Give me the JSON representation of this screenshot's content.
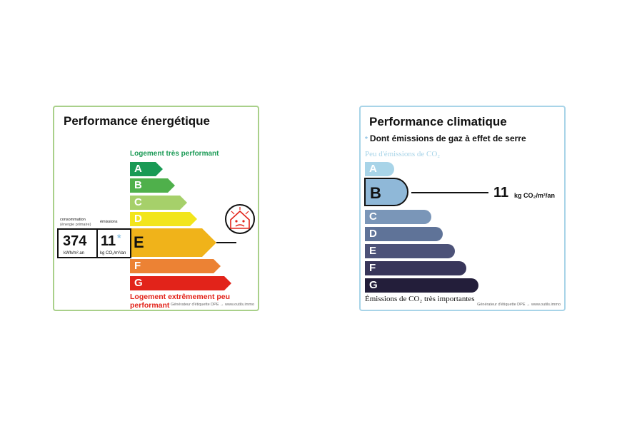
{
  "energy": {
    "title": "Performance énergétique",
    "top_label": "Logement très performant",
    "bottom_label": "Logement extrêmement peu performant",
    "credit": "Générateur d'étiquette DPE → www.outils.immo",
    "consumption_label": "consommation",
    "consumption_sublabel": "(énergie primaire)",
    "emissions_label": "émissions",
    "consumption_value": "374",
    "consumption_unit": "kWh/m².an",
    "emissions_value": "11",
    "emissions_star": "*",
    "emissions_unit": "kg CO₂/m²/an",
    "classes": [
      {
        "letter": "A",
        "color": "#1a9a55"
      },
      {
        "letter": "B",
        "color": "#4fb04b"
      },
      {
        "letter": "C",
        "color": "#a6d06a"
      },
      {
        "letter": "D",
        "color": "#f2e51c"
      },
      {
        "letter": "E",
        "color": "#f0b31a"
      },
      {
        "letter": "F",
        "color": "#ec8234"
      },
      {
        "letter": "G",
        "color": "#e2231a"
      }
    ],
    "selected": "E"
  },
  "climate": {
    "title": "Performance climatique",
    "subtitle_star": "*",
    "subtitle": "Dont émissions de gaz à effet de serre",
    "top_label": "Peu d'émissions de CO₂",
    "bottom_label": "Émissions de CO₂ très importantes",
    "credit": "Générateur d'étiquette DPE → www.outils.immo",
    "value": "11",
    "unit": "kg CO₂/m²/an",
    "classes": [
      {
        "letter": "A",
        "color": "#a8d4e8"
      },
      {
        "letter": "B",
        "color": "#8fb8d8"
      },
      {
        "letter": "C",
        "color": "#7a96b8"
      },
      {
        "letter": "D",
        "color": "#5f7398"
      },
      {
        "letter": "E",
        "color": "#4c5278"
      },
      {
        "letter": "F",
        "color": "#38365a"
      },
      {
        "letter": "G",
        "color": "#231e3a"
      }
    ],
    "selected": "B"
  }
}
